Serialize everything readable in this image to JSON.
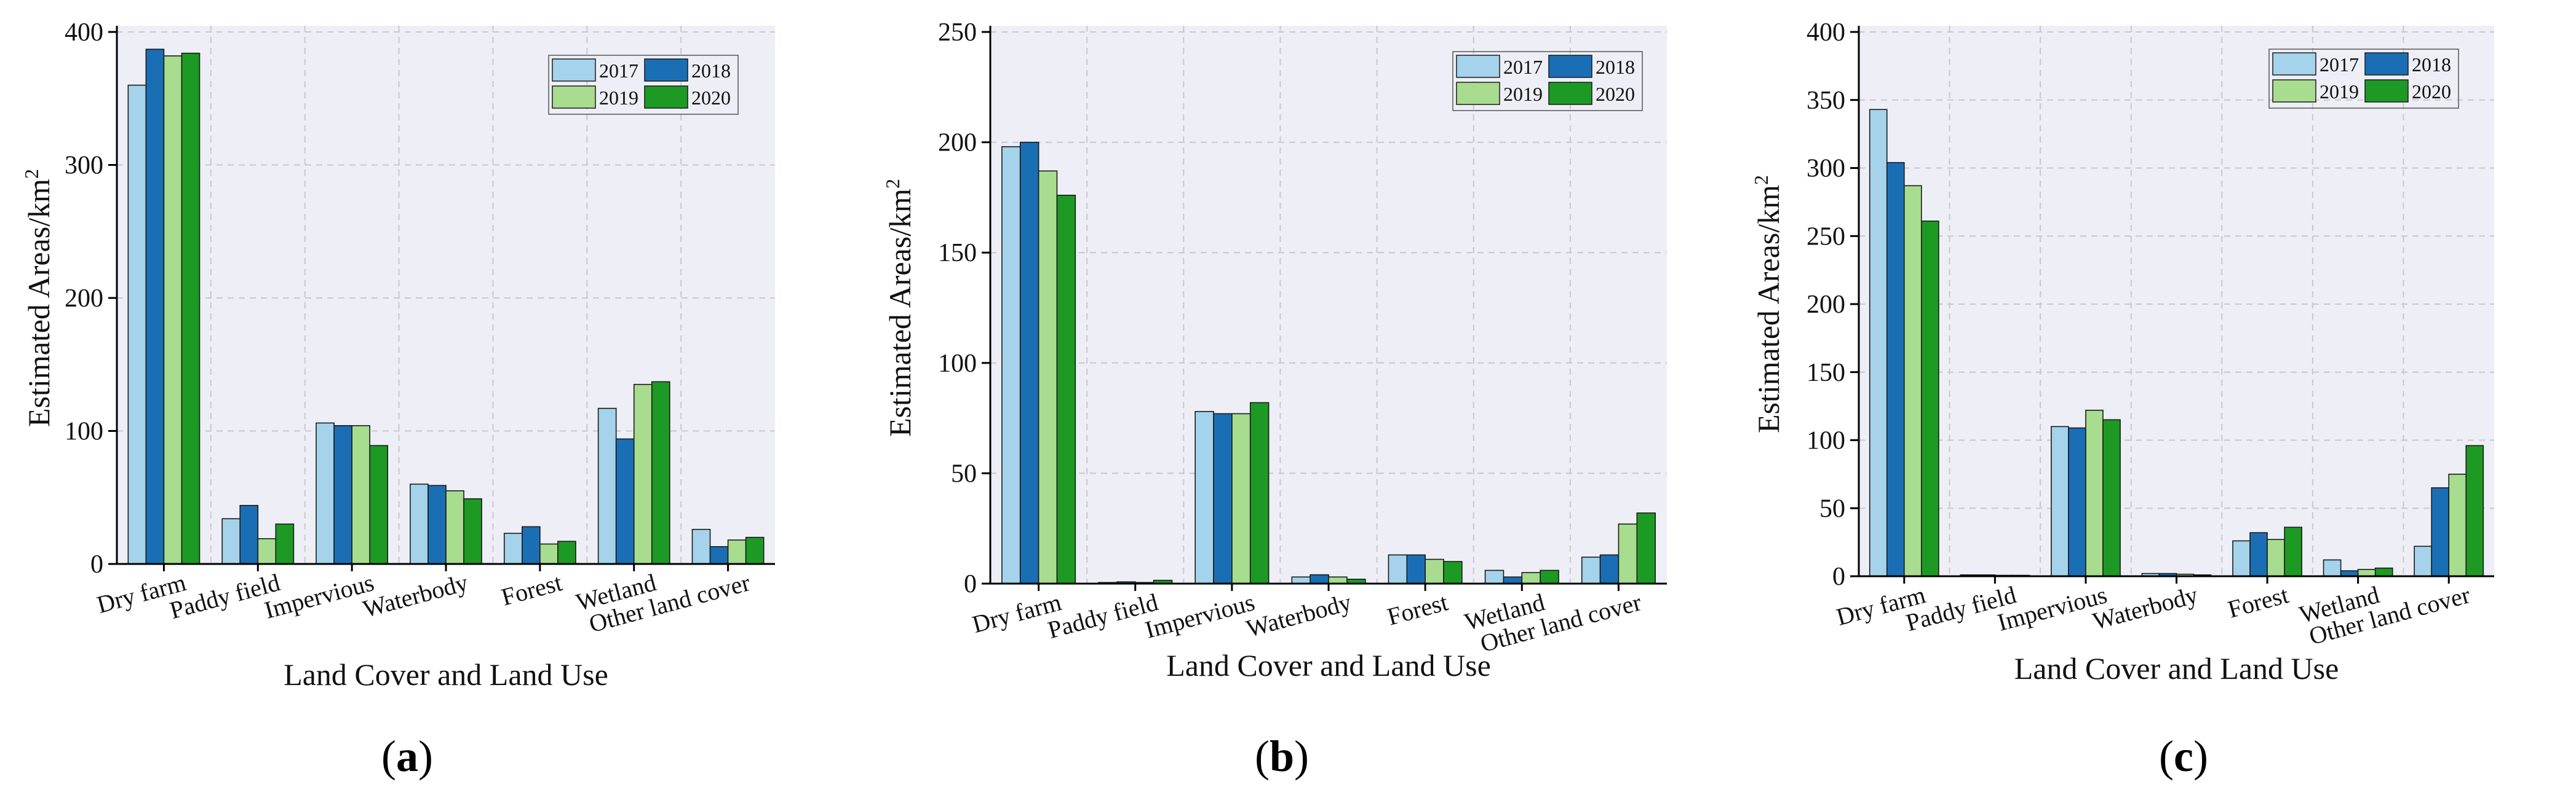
{
  "colors": {
    "y2017": "#a4d3eb",
    "y2018": "#1a6fb4",
    "y2019": "#a8dc8e",
    "y2020": "#1c9a24",
    "plot_bg": "#eeeef6",
    "grid": "#c8c8cc",
    "edge": "#1a1a1a"
  },
  "chart_data": [
    {
      "type": "bar",
      "caption": {
        "open": "(",
        "letter": "a",
        "close": ")"
      },
      "xlabel": "Land Cover and Land Use",
      "ylabel": {
        "main": "Estimated Areas/km",
        "sup": "2"
      },
      "ylim": [
        0,
        400
      ],
      "yticks": [
        "0",
        "100",
        "200",
        "300",
        "400"
      ],
      "categories": [
        "Dry farm",
        "Paddy field",
        "Impervious",
        "Waterbody",
        "Forest",
        "Wetland",
        "Other land cover"
      ],
      "legend_position": "top-right",
      "series": [
        {
          "name": "2017",
          "values": [
            360,
            34,
            106,
            60,
            23,
            117,
            26
          ]
        },
        {
          "name": "2018",
          "values": [
            387,
            44,
            104,
            59,
            28,
            94,
            13
          ]
        },
        {
          "name": "2019",
          "values": [
            382,
            19,
            104,
            55,
            15,
            135,
            18
          ]
        },
        {
          "name": "2020",
          "values": [
            384,
            30,
            89,
            49,
            17,
            137,
            20
          ]
        }
      ]
    },
    {
      "type": "bar",
      "caption": {
        "open": "(",
        "letter": "b",
        "close": ")"
      },
      "xlabel": "Land Cover and Land Use",
      "ylabel": {
        "main": "Estimated Areas/km",
        "sup": "2"
      },
      "ylim": [
        0,
        250
      ],
      "yticks": [
        "0",
        "50",
        "100",
        "150",
        "200",
        "250"
      ],
      "categories": [
        "Dry farm",
        "Paddy field",
        "Impervious",
        "Waterbody",
        "Forest",
        "Wetland",
        "Other land cover"
      ],
      "legend_position": "top-right",
      "series": [
        {
          "name": "2017",
          "values": [
            198,
            0.5,
            78,
            3,
            13,
            6,
            12
          ]
        },
        {
          "name": "2018",
          "values": [
            200,
            0.8,
            77,
            4,
            13,
            3,
            13
          ]
        },
        {
          "name": "2019",
          "values": [
            187,
            0.5,
            77,
            3,
            11,
            5,
            27
          ]
        },
        {
          "name": "2020",
          "values": [
            176,
            1.5,
            82,
            2,
            10,
            6,
            32
          ]
        }
      ]
    },
    {
      "type": "bar",
      "caption": {
        "open": "(",
        "letter": "c",
        "close": ")"
      },
      "xlabel": "Land Cover and Land Use",
      "ylabel": {
        "main": "Estimated Areas/km",
        "sup": "2"
      },
      "ylim": [
        0,
        400
      ],
      "yticks": [
        "0",
        "50",
        "100",
        "150",
        "200",
        "250",
        "300",
        "350",
        "400"
      ],
      "categories": [
        "Dry farm",
        "Paddy field",
        "Impervious",
        "Waterbody",
        "Forest",
        "Wetland",
        "Other land cover"
      ],
      "legend_position": "top-right",
      "series": [
        {
          "name": "2017",
          "values": [
            343,
            1,
            110,
            2,
            26,
            12,
            22
          ]
        },
        {
          "name": "2018",
          "values": [
            304,
            1,
            109,
            2,
            32,
            4,
            65
          ]
        },
        {
          "name": "2019",
          "values": [
            287,
            0.5,
            122,
            1.5,
            27,
            5,
            75
          ]
        },
        {
          "name": "2020",
          "values": [
            261,
            0.5,
            115,
            1,
            36,
            6,
            96
          ]
        }
      ]
    }
  ]
}
